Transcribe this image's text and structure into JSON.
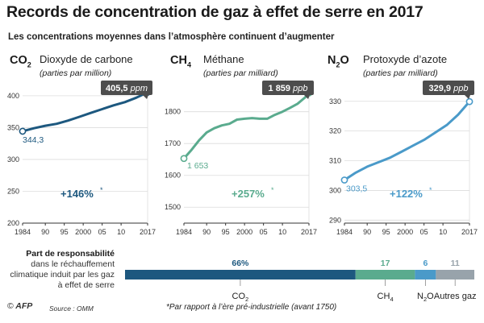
{
  "title": "Records de concentration de gaz à effet de serre en 2017",
  "subtitle": "Les concentrations moyennes dans l’atmosphère continuent d’augmenter",
  "chart_data": [
    {
      "type": "line",
      "formula": {
        "main": "CO",
        "sub": "2"
      },
      "name": "Dioxyde de carbone",
      "unit": "(parties par million)",
      "color": "#1d587f",
      "x_tick_labels": [
        "1984",
        "90",
        "95",
        "2000",
        "05",
        "10",
        "2017"
      ],
      "y_ticks": [
        200,
        250,
        300,
        350,
        400
      ],
      "ylim": [
        200,
        410
      ],
      "x": [
        1984,
        1987,
        1990,
        1993,
        1996,
        1999,
        2002,
        2005,
        2008,
        2011,
        2014,
        2017
      ],
      "y": [
        344.3,
        349,
        353,
        356,
        361,
        367,
        373,
        379,
        385,
        390,
        397,
        405.5
      ],
      "start_label": "344,3",
      "end_value": "405,5",
      "end_unit": "ppm",
      "increase": "+146%",
      "increase_star": "*"
    },
    {
      "type": "line",
      "formula": {
        "main": "CH",
        "sub": "4"
      },
      "name": "Méthane",
      "unit": "(parties par milliard)",
      "color": "#5aab8e",
      "x_tick_labels": [
        "1984",
        "90",
        "95",
        "2000",
        "05",
        "10",
        "2017"
      ],
      "y_ticks": [
        1500,
        1600,
        1700,
        1800
      ],
      "ylim": [
        1450,
        1870
      ],
      "x": [
        1984,
        1986,
        1988,
        1990,
        1992,
        1994,
        1996,
        1998,
        2000,
        2002,
        2004,
        2006,
        2008,
        2010,
        2012,
        2014,
        2016,
        2017
      ],
      "y": [
        1653,
        1680,
        1710,
        1735,
        1748,
        1757,
        1762,
        1775,
        1778,
        1780,
        1778,
        1778,
        1790,
        1800,
        1812,
        1825,
        1845,
        1859
      ],
      "start_label": "1 653",
      "end_value": "1 859",
      "end_unit": "ppb",
      "increase": "+257%",
      "increase_star": "*"
    },
    {
      "type": "line",
      "formula": {
        "main": "N",
        "sub": "2",
        "tail": "O"
      },
      "name": "Protoxyde d’azote",
      "unit": "(parties par milliard)",
      "color": "#4a9ac9",
      "x_tick_labels": [
        "1984",
        "90",
        "95",
        "2000",
        "05",
        "10",
        "2017"
      ],
      "y_ticks": [
        290,
        300,
        310,
        320,
        330
      ],
      "ylim": [
        289,
        334
      ],
      "x": [
        1984,
        1987,
        1990,
        1993,
        1996,
        1999,
        2002,
        2005,
        2008,
        2011,
        2014,
        2017
      ],
      "y": [
        303.5,
        306,
        308,
        309.5,
        311,
        313,
        315,
        317,
        319.5,
        322,
        325.5,
        329.9
      ],
      "start_label": "303,5",
      "end_value": "329,9",
      "end_unit": "ppb",
      "increase": "+122%",
      "increase_star": "*"
    },
    {
      "type": "bar",
      "orientation": "horizontal-stacked",
      "title": "Part de responsabilité",
      "description": "dans le réchauffement climatique induit par les gaz à effet de serre",
      "segments": [
        {
          "label_main": "CO",
          "label_sub": "2",
          "label_tail": "",
          "value": 66,
          "color": "#1d587f"
        },
        {
          "label_main": "CH",
          "label_sub": "4",
          "label_tail": "",
          "value": 17,
          "color": "#5aab8e"
        },
        {
          "label_main": "N",
          "label_sub": "2",
          "label_tail": "O",
          "value": 6,
          "color": "#4a9ac9"
        },
        {
          "label_main": "Autres gaz",
          "label_sub": "",
          "label_tail": "",
          "value": 11,
          "color": "#98a3ab"
        }
      ]
    }
  ],
  "footnote": "*Par rapport à l’ère pré-industrielle (avant 1750)",
  "credit": {
    "symbol": "©",
    "agency": "AFP"
  },
  "source": "Source : OMM",
  "colors": {
    "title": "#1a1a1a",
    "grid": "#dcdcdc",
    "axis": "#333333",
    "label_box": "#4d4d4d"
  }
}
